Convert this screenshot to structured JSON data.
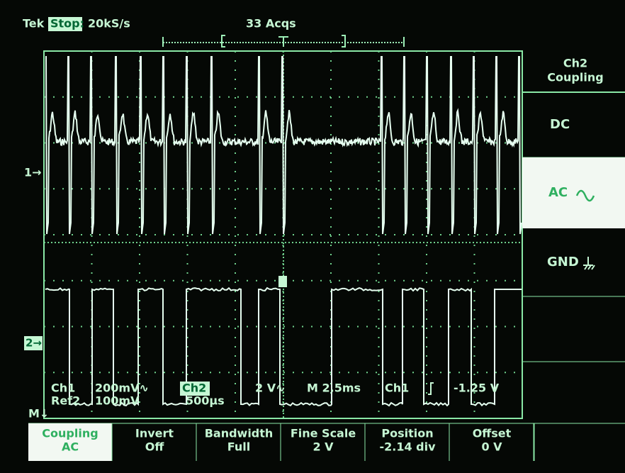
{
  "header": {
    "brand": "Tek",
    "status": "Stop:",
    "sample_rate": "20kS/s",
    "acquisitions": "33 Acqs"
  },
  "markers": {
    "ch1": "1→",
    "ch2": "2→",
    "math": "M↓"
  },
  "readout": {
    "ch1_label": "Ch1",
    "ch1_scale": "200mV∿",
    "ch2_label": "Ch2",
    "ch2_scale": "2 V∿",
    "timebase": "M 2.5ms",
    "trigger_source": "Ch1",
    "trigger_level": "-1.25 V",
    "ref_label": "Ref2",
    "ref_scale": "100mV",
    "ref_time": "500µs"
  },
  "side_menu": {
    "title_line1": "Ch2",
    "title_line2": "Coupling",
    "items": [
      "DC",
      "AC",
      "GND"
    ]
  },
  "bottom_menu": [
    {
      "label": "Coupling",
      "value": "AC"
    },
    {
      "label": "Invert",
      "value": "Off"
    },
    {
      "label": "Bandwidth",
      "value": "Full"
    },
    {
      "label": "Fine Scale",
      "value": "2 V"
    },
    {
      "label": "Position",
      "value": "-2.14 div"
    },
    {
      "label": "Offset",
      "value": "0 V"
    }
  ]
}
